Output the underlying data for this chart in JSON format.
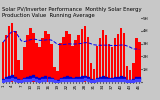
{
  "title": "Solar PV/Inverter Performance  Monthly Solar Energy Production Value  Running Average",
  "bar_values": [
    310,
    370,
    440,
    460,
    400,
    175,
    95,
    275,
    365,
    425,
    385,
    305,
    275,
    345,
    395,
    375,
    295,
    115,
    88,
    305,
    355,
    395,
    375,
    285,
    325,
    365,
    415,
    435,
    355,
    145,
    105,
    285,
    345,
    405,
    365,
    295,
    275,
    345,
    375,
    425,
    385,
    125,
    95,
    145,
    345,
    315
  ],
  "running_avg": [
    310,
    340,
    373,
    395,
    395,
    359,
    322,
    316,
    322,
    330,
    336,
    332,
    325,
    326,
    328,
    331,
    327,
    312,
    294,
    292,
    293,
    296,
    298,
    296,
    297,
    299,
    302,
    307,
    307,
    299,
    291,
    288,
    287,
    288,
    288,
    287,
    285,
    285,
    286,
    289,
    289,
    281,
    272,
    258,
    258,
    253
  ],
  "scatter_y1": [
    18,
    28,
    38,
    48,
    28,
    14,
    9,
    24,
    33,
    38,
    43,
    28,
    23,
    33,
    36,
    34,
    26,
    11,
    7,
    26,
    32,
    36,
    34,
    25,
    28,
    33,
    38,
    40,
    32,
    13,
    9,
    26,
    31,
    37,
    33,
    26,
    24,
    31,
    34,
    39,
    35,
    11,
    8,
    13,
    31,
    28
  ],
  "scatter_y2": [
    8,
    14,
    19,
    24,
    14,
    7,
    4,
    12,
    16,
    19,
    21,
    14,
    11,
    16,
    18,
    17,
    13,
    5,
    3,
    13,
    16,
    18,
    17,
    12,
    14,
    16,
    19,
    20,
    16,
    6,
    4,
    13,
    15,
    18,
    16,
    13,
    12,
    15,
    17,
    19,
    17,
    5,
    4,
    6,
    15,
    14
  ],
  "bar_color": "#FF0000",
  "avg_color": "#0000EE",
  "scatter_color1": "#0000CC",
  "scatter_color2": "#4444FF",
  "bg_color": "#C8C8C8",
  "plot_bg": "#C8C8C8",
  "grid_color": "#FFFFFF",
  "ylim": [
    0,
    500
  ],
  "yticks": [
    0,
    100,
    200,
    300,
    400,
    500
  ],
  "ytick_labels": [
    "0",
    "1H",
    "2H",
    "3H",
    "4H",
    "5H"
  ],
  "title_fontsize": 3.8,
  "tick_fontsize": 3.0,
  "n_bars": 46
}
